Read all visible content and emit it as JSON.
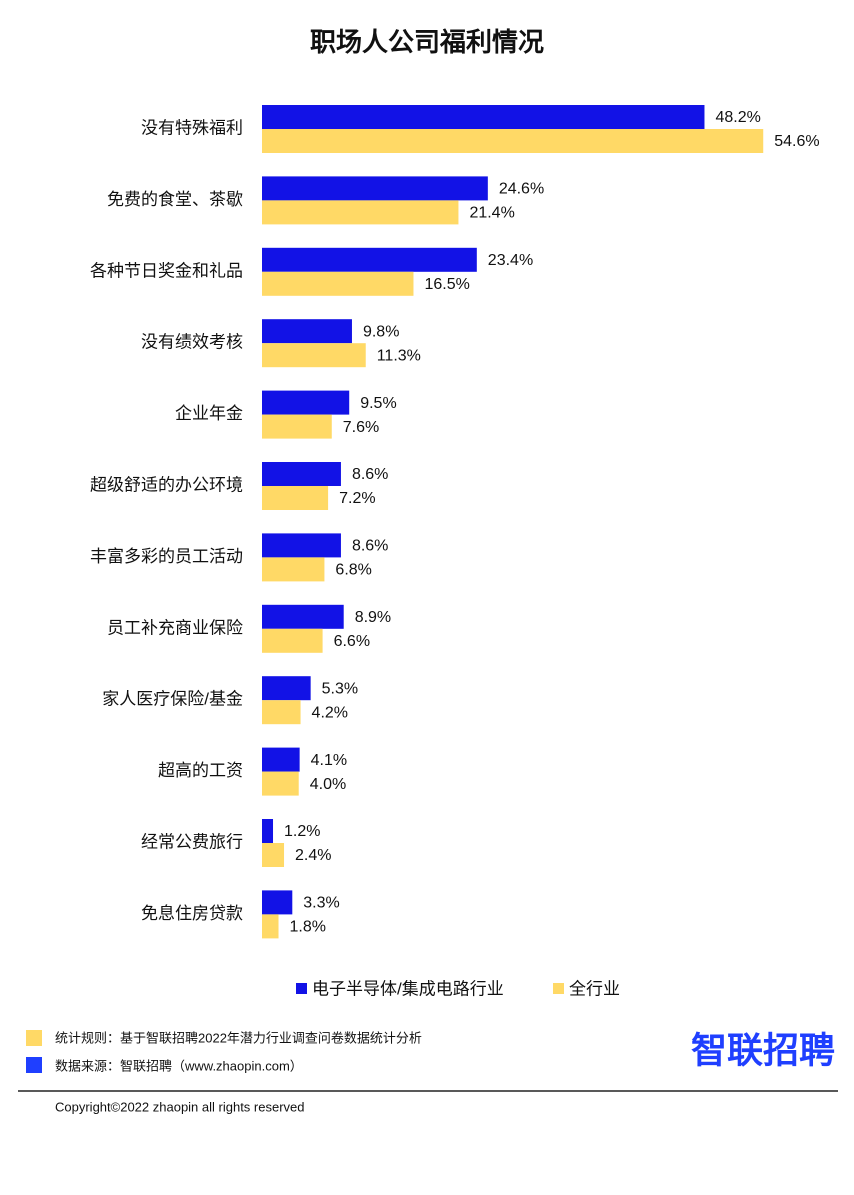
{
  "chart_data": {
    "type": "barh",
    "title": "职场人公司福利情况",
    "categories": [
      "没有特殊福利",
      "免费的食堂、茶歇",
      "各种节日奖金和礼品",
      "没有绩效考核",
      "企业年金",
      "超级舒适的办公环境",
      "丰富多彩的员工活动",
      "员工补充商业保险",
      "家人医疗保险/基金",
      "超高的工资",
      "经常公费旅行",
      "免息住房贷款"
    ],
    "series": [
      {
        "name": "电子半导体/集成电路行业",
        "color": "#1212e6",
        "values": [
          48.2,
          24.6,
          23.4,
          9.8,
          9.5,
          8.6,
          8.6,
          8.9,
          5.3,
          4.1,
          1.2,
          3.3
        ],
        "value_labels": [
          "48.2%",
          "24.6%",
          "23.4%",
          "9.8%",
          "9.5%",
          "8.6%",
          "8.6%",
          "8.9%",
          "5.3%",
          "4.1%",
          "1.2%",
          "3.3%"
        ]
      },
      {
        "name": "全行业",
        "color": "#ffd966",
        "values": [
          54.6,
          21.4,
          16.5,
          11.3,
          7.6,
          7.2,
          6.8,
          6.6,
          4.2,
          4.0,
          2.4,
          1.8
        ],
        "value_labels": [
          "54.6%",
          "21.4%",
          "16.5%",
          "11.3%",
          "7.6%",
          "7.2%",
          "6.8%",
          "6.6%",
          "4.2%",
          "4.0%",
          "2.4%",
          "1.8%"
        ]
      }
    ]
  },
  "footer": {
    "notes": [
      "统计规则：基于智联招聘2022年潜力行业调查问卷数据统计分析",
      "数据来源：智联招聘（www.zhaopin.com）"
    ],
    "logo": "智联招聘",
    "copyright": "Copyright©2022 zhaopin all rights reserved"
  }
}
